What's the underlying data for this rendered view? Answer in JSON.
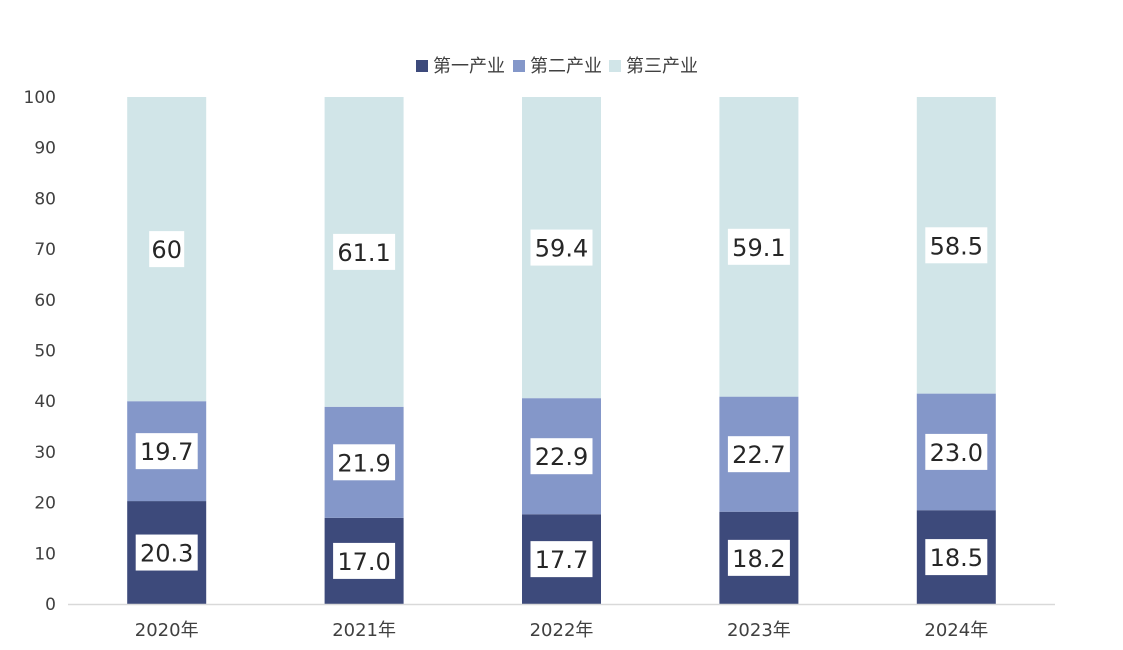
{
  "chart_data": {
    "type": "bar",
    "stacked": true,
    "categories": [
      "2020年",
      "2021年",
      "2022年",
      "2023年",
      "2024年"
    ],
    "series": [
      {
        "name": "第一产业",
        "values": [
          20.3,
          17.0,
          17.7,
          18.2,
          18.5
        ],
        "labels": [
          "20.3",
          "17.0",
          "17.7",
          "18.2",
          "18.5"
        ],
        "color": "#3d4a7b"
      },
      {
        "name": "第二产业",
        "values": [
          19.7,
          21.9,
          22.9,
          22.7,
          23.0
        ],
        "labels": [
          "19.7",
          "21.9",
          "22.9",
          "22.7",
          "23.0"
        ],
        "color": "#8497c9"
      },
      {
        "name": "第三产业",
        "values": [
          60,
          61.1,
          59.4,
          59.1,
          58.5
        ],
        "labels": [
          "60",
          "61.1",
          "59.4",
          "59.1",
          "58.5"
        ],
        "color": "#d1e5e8"
      }
    ],
    "ylim": [
      0,
      100
    ],
    "yticks": [
      "0",
      "10",
      "20",
      "30",
      "40",
      "50",
      "60",
      "70",
      "80",
      "90",
      "100"
    ],
    "legend_position": "top-center",
    "grid": false,
    "title": "",
    "xlabel": "",
    "ylabel": ""
  }
}
